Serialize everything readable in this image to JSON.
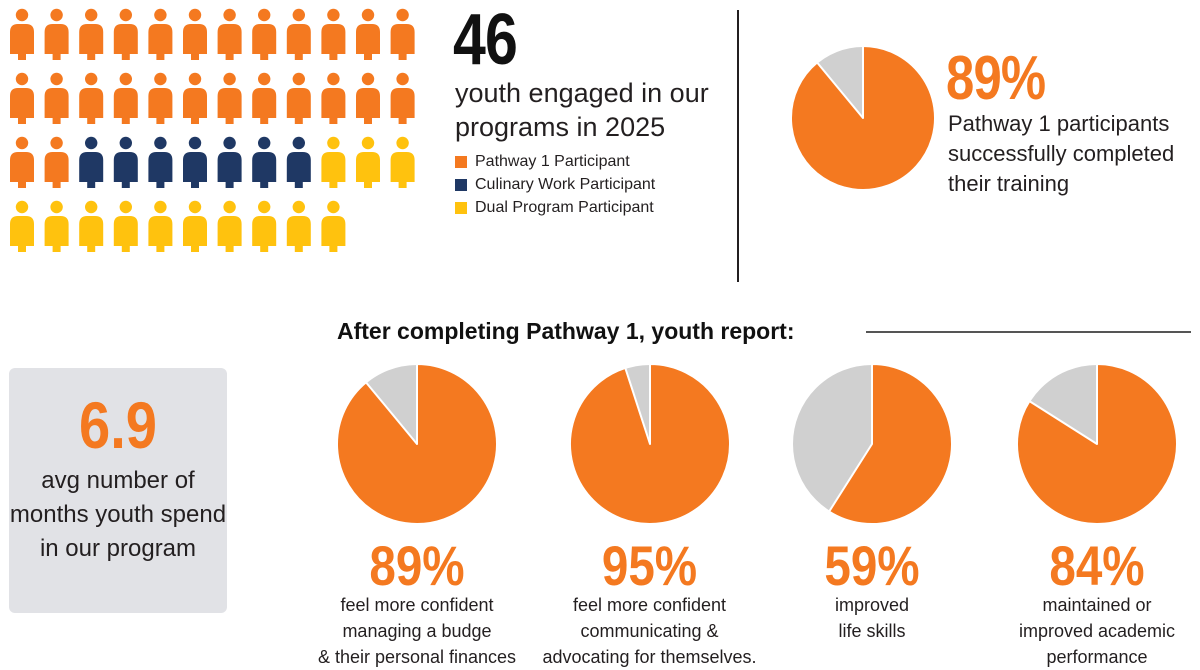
{
  "colors": {
    "pathway1": "#f47920",
    "culinary": "#1f3864",
    "dual": "#ffc20e",
    "remainder": "#d0d0d0"
  },
  "youth": {
    "total": "46",
    "description": "youth engaged in our programs in 2025",
    "legend": [
      {
        "label": "Pathway 1 Participant",
        "color": "#f47920"
      },
      {
        "label": "Culinary Work Participant",
        "color": "#1f3864"
      },
      {
        "label": "Dual Program Participant",
        "color": "#ffc20e"
      }
    ]
  },
  "completion": {
    "percent": "89%",
    "description": "Pathway 1 participants successfully completed their training"
  },
  "section_title": "After completing Pathway 1, youth report:",
  "months": {
    "value": "6.9",
    "description": "avg number of months youth spend in our program"
  },
  "chart_data": [
    {
      "type": "pictogram",
      "categories": [
        "Pathway 1 Participant",
        "Culinary Work Participant",
        "Dual Program Participant"
      ],
      "values": [
        26,
        7,
        13
      ]
    },
    {
      "type": "pie",
      "categories": [
        "completed",
        "other"
      ],
      "values": [
        89,
        11
      ]
    },
    {
      "type": "pie",
      "categories": [
        "feel more confident managing a budge & their personal finances",
        "other"
      ],
      "values": [
        89,
        11
      ]
    },
    {
      "type": "pie",
      "categories": [
        "feel more confident communicating & advocating for themselves.",
        "other"
      ],
      "values": [
        95,
        5
      ]
    },
    {
      "type": "pie",
      "categories": [
        "improved life skills",
        "other"
      ],
      "values": [
        59,
        41
      ]
    },
    {
      "type": "pie",
      "categories": [
        "maintained or improved academic performance",
        "other"
      ],
      "values": [
        84,
        16
      ]
    }
  ],
  "stats": [
    {
      "percent": "89%",
      "value": 89,
      "description": "feel more confident\nmanaging a budge\n& their personal finances"
    },
    {
      "percent": "95%",
      "value": 95,
      "description": "feel more confident\ncommunicating &\nadvocating for themselves."
    },
    {
      "percent": "59%",
      "value": 59,
      "description": "improved\nlife skills"
    },
    {
      "percent": "84%",
      "value": 84,
      "description": "maintained or\nimproved academic\nperformance"
    }
  ]
}
